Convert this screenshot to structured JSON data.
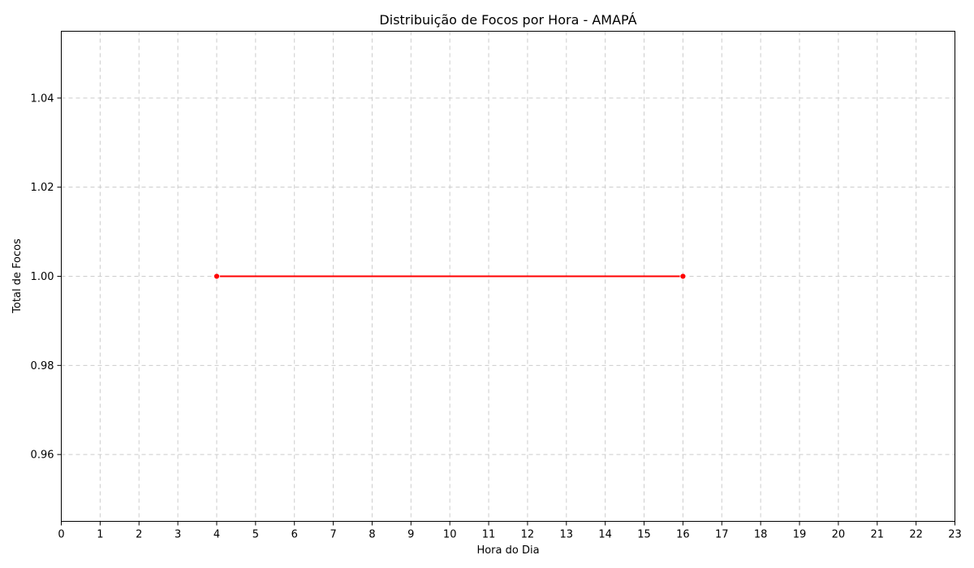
{
  "chart_data": {
    "type": "line",
    "title": "Distribuição de Focos por Hora - AMAPÁ",
    "xlabel": "Hora do Dia",
    "ylabel": "Total de Focos",
    "xlim": [
      0,
      23
    ],
    "ylim": [
      0.945,
      1.055
    ],
    "x_ticks": [
      0,
      1,
      2,
      3,
      4,
      5,
      6,
      7,
      8,
      9,
      10,
      11,
      12,
      13,
      14,
      15,
      16,
      17,
      18,
      19,
      20,
      21,
      22,
      23
    ],
    "y_ticks": [
      0.96,
      0.98,
      1.0,
      1.02,
      1.04
    ],
    "y_tick_labels": [
      "0.96",
      "0.98",
      "1.00",
      "1.02",
      "1.04"
    ],
    "grid": true,
    "series": [
      {
        "color": "#ff0000",
        "marker": "circle",
        "x": [
          4,
          16
        ],
        "y": [
          1.0,
          1.0
        ]
      }
    ]
  }
}
